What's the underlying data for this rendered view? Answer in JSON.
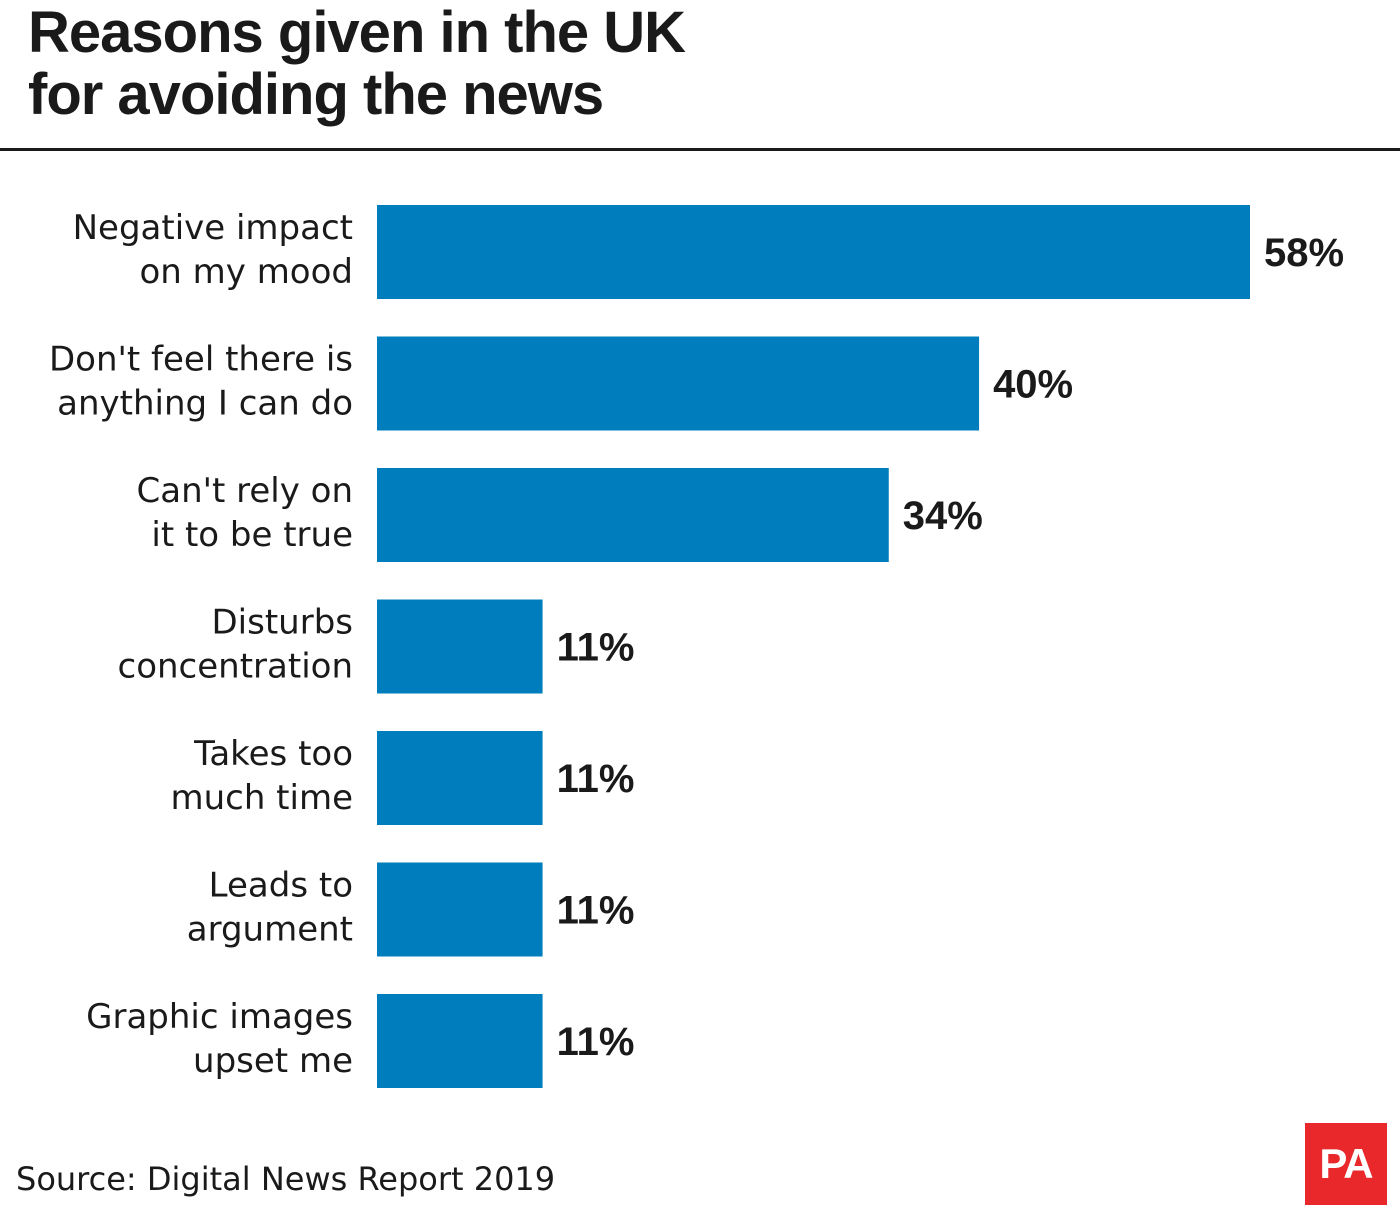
{
  "title_lines": [
    "Reasons given in the UK",
    "for avoiding the news"
  ],
  "source": "Source: Digital News Report 2019",
  "logo_text": "PA",
  "colors": {
    "bar": "#007dbc",
    "text": "#1a1a1a",
    "logo_bg": "#e8282b"
  },
  "chart_data": {
    "type": "bar",
    "orientation": "horizontal",
    "title": "Reasons given in the UK for avoiding the news",
    "xlabel": "",
    "ylabel": "",
    "unit": "%",
    "xlim": [
      0,
      58
    ],
    "grid": false,
    "legend": "none",
    "categories": [
      [
        "Negative impact",
        "on my mood"
      ],
      [
        "Don't feel there is",
        "anything I can do"
      ],
      [
        "Can't rely on",
        "it to be true"
      ],
      [
        "Disturbs",
        "concentration"
      ],
      [
        "Takes too",
        "much time"
      ],
      [
        "Leads to",
        "argument"
      ],
      [
        "Graphic images",
        "upset me"
      ]
    ],
    "values": [
      58,
      40,
      34,
      11,
      11,
      11,
      11
    ],
    "value_labels": [
      "58%",
      "40%",
      "34%",
      "11%",
      "11%",
      "11%",
      "11%"
    ]
  }
}
